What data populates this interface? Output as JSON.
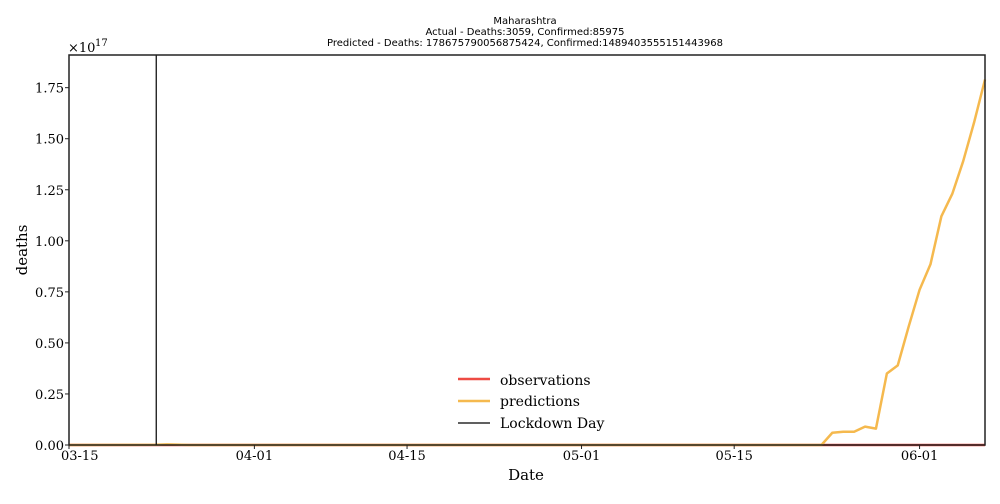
{
  "chart_data": {
    "type": "line",
    "title_lines": [
      "Maharashtra",
      "Actual - Deaths:3059,  Confirmed:85975",
      "Predicted - Deaths:  178675790056875424,  Confirmed:1489403555151443968"
    ],
    "xlabel": "Date",
    "ylabel": "deaths",
    "x_ticks": [
      "03-15",
      "04-01",
      "04-15",
      "05-01",
      "05-15",
      "06-01"
    ],
    "x_tick_dates": [
      "2020-03-15",
      "2020-04-01",
      "2020-04-15",
      "2020-05-01",
      "2020-05-15",
      "2020-06-01"
    ],
    "xlim": [
      "2020-03-15",
      "2020-06-07"
    ],
    "y_ticks": [
      "0.00",
      "0.25",
      "0.50",
      "0.75",
      "1.00",
      "1.25",
      "1.50",
      "1.75"
    ],
    "y_tick_values": [
      0,
      2.5e+16,
      5e+16,
      7.5e+16,
      1e+17,
      1.25e+17,
      1.5e+17,
      1.75e+17
    ],
    "ylim": [
      0,
      1.91e+17
    ],
    "y_offset_text": "×10",
    "y_offset_exponent": "17",
    "grid": false,
    "legend_position": "lower center",
    "lockdown_day": "2020-03-23",
    "series": [
      {
        "name": "observations",
        "color": "#ee4b43",
        "points": [
          {
            "x": "2020-03-15",
            "y": 0
          },
          {
            "x": "2020-06-07",
            "y": 0
          }
        ]
      },
      {
        "name": "predictions",
        "color": "#f5b94e",
        "points": [
          {
            "x": "2020-03-15",
            "y": 0
          },
          {
            "x": "2020-03-23",
            "y": 100000000000000.0
          },
          {
            "x": "2020-03-24",
            "y": 300000000000000.0
          },
          {
            "x": "2020-03-25",
            "y": 200000000000000.0
          },
          {
            "x": "2020-03-26",
            "y": 0
          },
          {
            "x": "2020-05-23",
            "y": 0
          },
          {
            "x": "2020-05-24",
            "y": 6000000000000000.0
          },
          {
            "x": "2020-05-25",
            "y": 6500000000000000.0
          },
          {
            "x": "2020-05-26",
            "y": 6500000000000000.0
          },
          {
            "x": "2020-05-27",
            "y": 9000000000000000.0
          },
          {
            "x": "2020-05-28",
            "y": 8000000000000000.0
          },
          {
            "x": "2020-05-29",
            "y": 3.5e+16
          },
          {
            "x": "2020-05-30",
            "y": 3.9e+16
          },
          {
            "x": "2020-05-31",
            "y": 5.8e+16
          },
          {
            "x": "2020-06-01",
            "y": 7.6e+16
          },
          {
            "x": "2020-06-02",
            "y": 8.85e+16
          },
          {
            "x": "2020-06-03",
            "y": 1.12e+17
          },
          {
            "x": "2020-06-04",
            "y": 1.23e+17
          },
          {
            "x": "2020-06-05",
            "y": 1.39e+17
          },
          {
            "x": "2020-06-06",
            "y": 1.58e+17
          },
          {
            "x": "2020-06-07",
            "y": 1.79e+17
          }
        ]
      },
      {
        "name": "Lockdown Day",
        "color": "#000000"
      }
    ]
  }
}
